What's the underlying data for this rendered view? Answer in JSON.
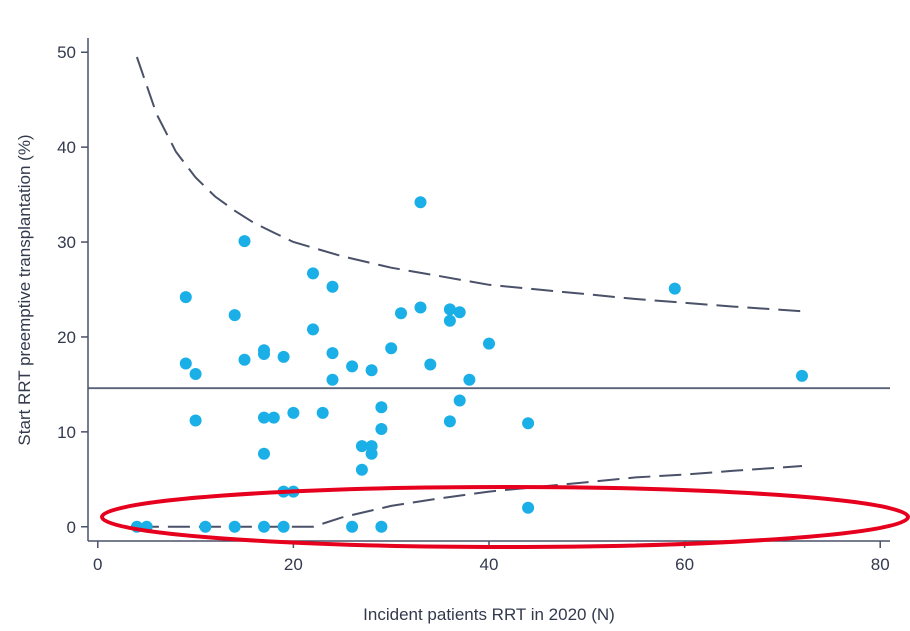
{
  "chart_data": {
    "type": "scatter",
    "title": "",
    "xlabel": "Incident patients RRT in 2020 (N)",
    "ylabel": "Start RRT preemptive transplantation (%)",
    "xlim": [
      -1,
      81
    ],
    "ylim": [
      -1.5,
      51.5
    ],
    "xticks": [
      0,
      20,
      40,
      60,
      80
    ],
    "yticks": [
      0,
      10,
      20,
      30,
      40,
      50
    ],
    "xtick_labels": [
      "0",
      "20",
      "40",
      "60",
      "80"
    ],
    "ytick_labels": [
      "0",
      "10",
      "20",
      "30",
      "40",
      "50"
    ],
    "grid": false,
    "mean_line": 14.6,
    "upper_limit": [
      [
        4,
        49.5
      ],
      [
        6,
        43.5
      ],
      [
        8,
        39.5
      ],
      [
        10,
        36.8
      ],
      [
        12,
        34.8
      ],
      [
        14,
        33.3
      ],
      [
        16,
        32.0
      ],
      [
        18,
        31.0
      ],
      [
        20,
        30.0
      ],
      [
        25,
        28.5
      ],
      [
        30,
        27.3
      ],
      [
        35,
        26.4
      ],
      [
        40,
        25.5
      ],
      [
        45,
        25.0
      ],
      [
        50,
        24.5
      ],
      [
        55,
        24.0
      ],
      [
        60,
        23.6
      ],
      [
        65,
        23.2
      ],
      [
        72,
        22.7
      ]
    ],
    "lower_limit": [
      [
        4,
        0
      ],
      [
        22,
        0
      ],
      [
        25,
        1.0
      ],
      [
        30,
        2.2
      ],
      [
        35,
        3.0
      ],
      [
        40,
        3.7
      ],
      [
        45,
        4.2
      ],
      [
        50,
        4.7
      ],
      [
        55,
        5.2
      ],
      [
        60,
        5.5
      ],
      [
        65,
        5.9
      ],
      [
        72,
        6.4
      ]
    ],
    "points": [
      [
        4,
        0
      ],
      [
        5,
        0
      ],
      [
        11,
        0
      ],
      [
        14,
        0
      ],
      [
        17,
        0
      ],
      [
        19,
        0
      ],
      [
        26,
        0
      ],
      [
        29,
        0
      ],
      [
        44,
        2.0
      ],
      [
        19,
        3.7
      ],
      [
        20,
        3.7
      ],
      [
        27,
        6.0
      ],
      [
        17,
        7.7
      ],
      [
        28,
        7.7
      ],
      [
        27,
        8.5
      ],
      [
        28,
        8.5
      ],
      [
        29,
        10.3
      ],
      [
        44,
        10.9
      ],
      [
        10,
        11.2
      ],
      [
        17,
        11.5
      ],
      [
        18,
        11.5
      ],
      [
        20,
        12.0
      ],
      [
        23,
        12.0
      ],
      [
        36,
        11.1
      ],
      [
        29,
        12.6
      ],
      [
        37,
        13.3
      ],
      [
        24,
        15.5
      ],
      [
        38,
        15.5
      ],
      [
        72,
        15.9
      ],
      [
        10,
        16.1
      ],
      [
        28,
        16.5
      ],
      [
        26,
        16.9
      ],
      [
        9,
        17.2
      ],
      [
        34,
        17.1
      ],
      [
        15,
        17.6
      ],
      [
        19,
        17.9
      ],
      [
        17,
        18.2
      ],
      [
        24,
        18.3
      ],
      [
        17,
        18.6
      ],
      [
        30,
        18.8
      ],
      [
        40,
        19.3
      ],
      [
        22,
        20.8
      ],
      [
        36,
        21.7
      ],
      [
        14,
        22.3
      ],
      [
        31,
        22.5
      ],
      [
        37,
        22.6
      ],
      [
        36,
        22.9
      ],
      [
        33,
        23.1
      ],
      [
        9,
        24.2
      ],
      [
        59,
        25.1
      ],
      [
        24,
        25.3
      ],
      [
        22,
        26.7
      ],
      [
        15,
        30.1
      ],
      [
        33,
        34.2
      ]
    ],
    "annotation": "red ellipse highlighting the lower control limit and zero values"
  },
  "colors": {
    "points": "#1aafe6",
    "axis": "#4a5168",
    "mean_line": "#5a6278",
    "limit_lines": "#4a5168",
    "annotation": "#e6001e"
  }
}
